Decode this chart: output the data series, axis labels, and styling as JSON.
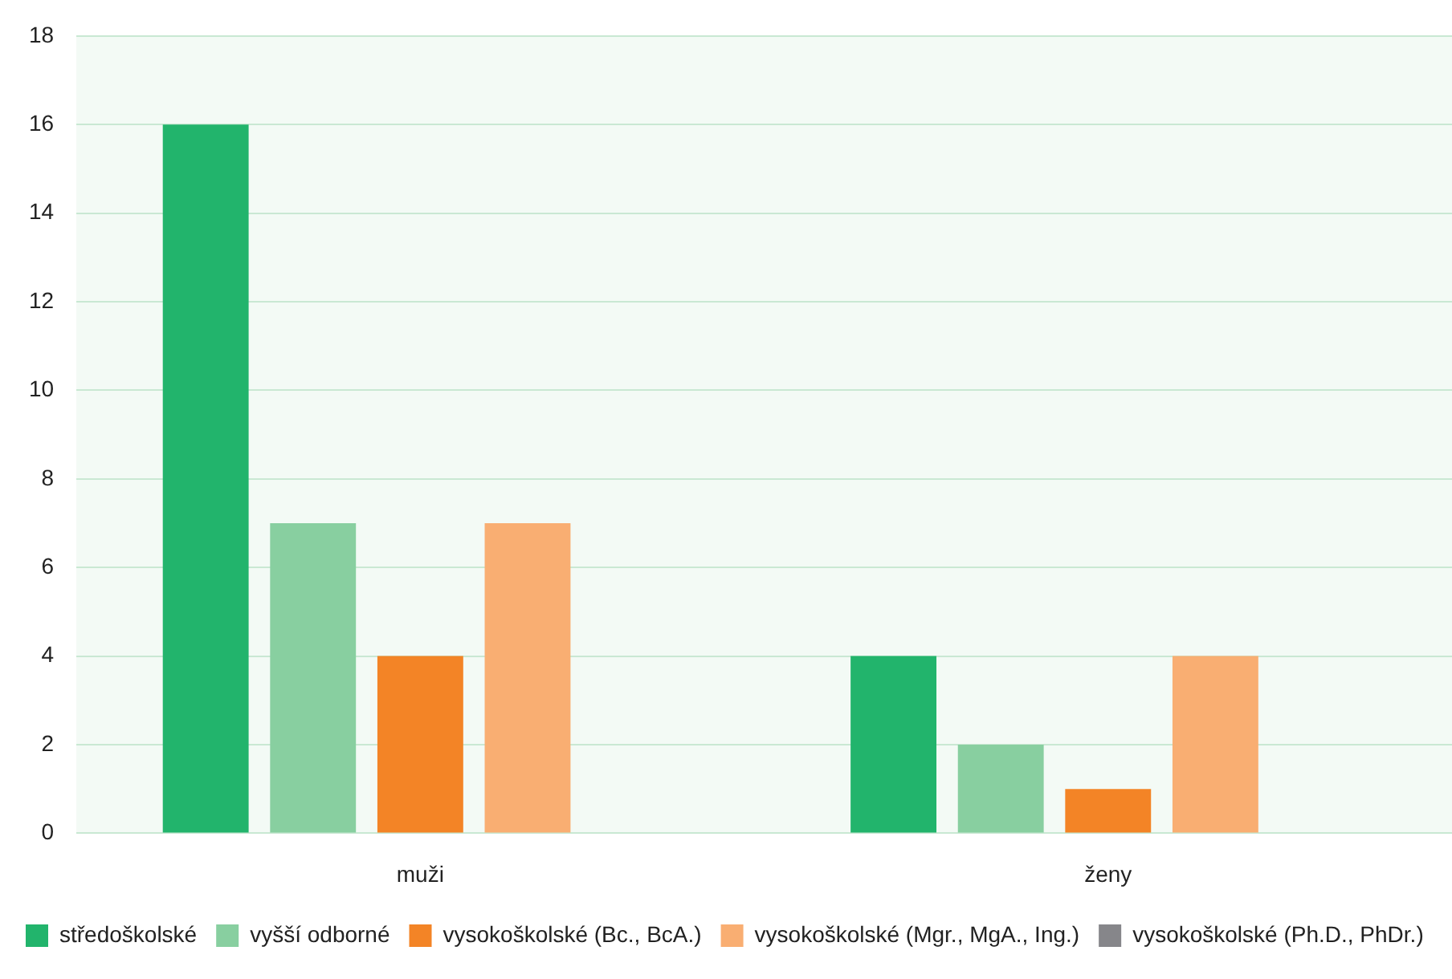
{
  "chart_data": {
    "type": "bar",
    "categories": [
      "muži",
      "ženy"
    ],
    "series": [
      {
        "name": "středoškolské",
        "color": "#22b46c",
        "values": [
          16,
          4
        ]
      },
      {
        "name": "vyšší odborné",
        "color": "#88cfa0",
        "values": [
          7,
          2
        ]
      },
      {
        "name": "vysokoškolské (Bc., BcA.)",
        "color": "#f38426",
        "values": [
          4,
          1
        ]
      },
      {
        "name": "vysokoškolské (Mgr., MgA., Ing.)",
        "color": "#f9ae72",
        "values": [
          7,
          4
        ]
      },
      {
        "name": "vysokoškolské (Ph.D., PhDr.)",
        "color": "#86868a",
        "values": [
          0,
          0
        ]
      }
    ],
    "ylim": [
      0,
      18
    ],
    "yticks": [
      0,
      2,
      4,
      6,
      8,
      10,
      12,
      14,
      16,
      18
    ],
    "grid": "y",
    "legend": "bottom"
  }
}
